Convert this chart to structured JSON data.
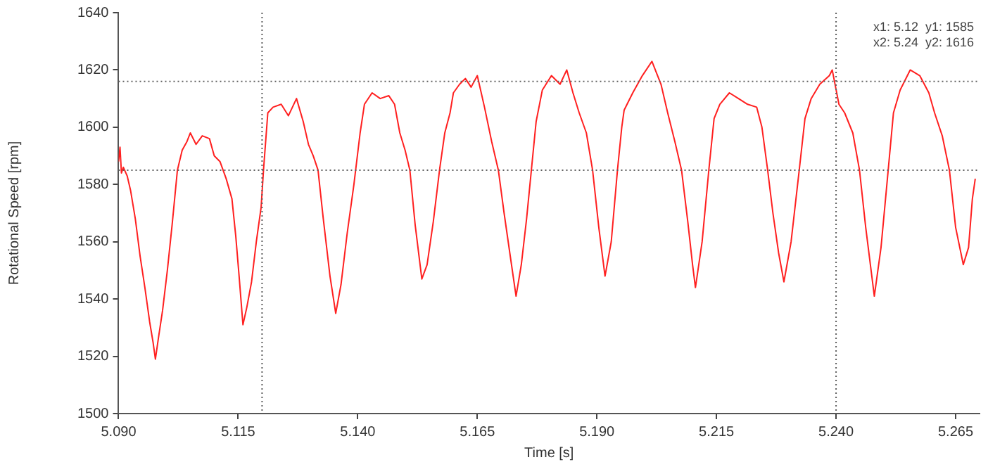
{
  "chart_data": {
    "type": "line",
    "xlabel": "Time [s]",
    "ylabel": "Rotational Speed [rpm]",
    "xlim": [
      5.09,
      5.27
    ],
    "xticks": [
      {
        "value": 5.09,
        "label": "5.090"
      },
      5.115,
      {
        "value": 5.14,
        "label": "5.140"
      },
      5.165,
      {
        "value": 5.19,
        "label": "5.190"
      },
      5.215,
      {
        "value": 5.24,
        "label": "5.240"
      },
      5.265
    ],
    "ylim": [
      1500,
      1640
    ],
    "yticks": [
      1500,
      1520,
      1540,
      1560,
      1580,
      1600,
      1620,
      1640
    ],
    "grid": false,
    "legend": false,
    "marker": "none",
    "line_style": "solid",
    "ref_lines": [
      {
        "axis": "x",
        "value": 5.12,
        "color": "#606060",
        "line_style": "dotted"
      },
      {
        "axis": "x",
        "value": 5.24,
        "color": "#606060",
        "line_style": "dotted"
      },
      {
        "axis": "y",
        "value": 1585,
        "color": "#606060",
        "line_style": "dotted"
      },
      {
        "axis": "y",
        "value": 1616,
        "color": "#606060",
        "line_style": "dotted"
      }
    ],
    "annotations": [
      "x1: 5.12  y1: 1585",
      "x2: 5.24  y2: 1616"
    ],
    "series": [
      {
        "color": "#ff2020",
        "x": [
          5.09,
          5.0903,
          5.0906,
          5.091,
          5.0918,
          5.0925,
          5.0935,
          5.0945,
          5.0955,
          5.0965,
          5.0972,
          5.0977,
          5.0983,
          5.0992,
          5.1002,
          5.1012,
          5.1023,
          5.1033,
          5.1043,
          5.105,
          5.1062,
          5.1075,
          5.109,
          5.11,
          5.1112,
          5.1125,
          5.1137,
          5.1145,
          5.1152,
          5.116,
          5.1168,
          5.1178,
          5.1188,
          5.1198,
          5.1203,
          5.1212,
          5.1223,
          5.124,
          5.1255,
          5.1272,
          5.1286,
          5.1297,
          5.1307,
          5.1317,
          5.1328,
          5.1342,
          5.1354,
          5.1365,
          5.1378,
          5.1392,
          5.1405,
          5.1414,
          5.143,
          5.1447,
          5.1465,
          5.1477,
          5.1488,
          5.1499,
          5.1509,
          5.152,
          5.1534,
          5.1545,
          5.1558,
          5.1571,
          5.1582,
          5.1593,
          5.16,
          5.1613,
          5.1625,
          5.1637,
          5.165,
          5.1665,
          5.168,
          5.1694,
          5.1706,
          5.1718,
          5.1731,
          5.1742,
          5.1753,
          5.1763,
          5.1773,
          5.1786,
          5.1805,
          5.1823,
          5.1837,
          5.185,
          5.1863,
          5.1878,
          5.1891,
          5.1904,
          5.1917,
          5.193,
          5.1943,
          5.1952,
          5.1957,
          5.1975,
          5.1995,
          5.2015,
          5.2034,
          5.2048,
          5.2063,
          5.2077,
          5.209,
          5.21,
          5.2106,
          5.212,
          5.2134,
          5.2145,
          5.2157,
          5.2177,
          5.2196,
          5.2215,
          5.2234,
          5.2245,
          5.2257,
          5.2268,
          5.228,
          5.2291,
          5.2306,
          5.2323,
          5.2335,
          5.2348,
          5.2366,
          5.2386,
          5.2392,
          5.2406,
          5.2418,
          5.2435,
          5.2449,
          5.2462,
          5.248,
          5.2494,
          5.2509,
          5.252,
          5.2534,
          5.2555,
          5.2575,
          5.2594,
          5.2606,
          5.2622,
          5.2637,
          5.265,
          5.2666,
          5.2677,
          5.2685,
          5.2691
        ],
        "values": [
          1588,
          1593,
          1584,
          1586,
          1583,
          1578,
          1568,
          1555,
          1544,
          1532,
          1525,
          1519,
          1526,
          1536,
          1550,
          1566,
          1585,
          1592,
          1595,
          1598,
          1594,
          1597,
          1596,
          1590,
          1588,
          1582,
          1575,
          1562,
          1548,
          1531,
          1537,
          1546,
          1560,
          1572,
          1585,
          1605,
          1607,
          1608,
          1604,
          1610,
          1602,
          1594,
          1590,
          1585,
          1568,
          1548,
          1535,
          1545,
          1563,
          1580,
          1598,
          1608,
          1612,
          1610,
          1611,
          1608,
          1598,
          1592,
          1585,
          1566,
          1547,
          1552,
          1567,
          1585,
          1598,
          1605,
          1612,
          1615,
          1617,
          1614,
          1618,
          1607,
          1595,
          1585,
          1570,
          1556,
          1541,
          1552,
          1568,
          1585,
          1602,
          1613,
          1618,
          1615,
          1620,
          1612,
          1605,
          1598,
          1585,
          1565,
          1548,
          1560,
          1585,
          1600,
          1606,
          1612,
          1618,
          1623,
          1615,
          1605,
          1595,
          1585,
          1567,
          1552,
          1544,
          1560,
          1585,
          1603,
          1608,
          1612,
          1610,
          1608,
          1607,
          1600,
          1585,
          1570,
          1556,
          1546,
          1560,
          1585,
          1603,
          1610,
          1615,
          1618,
          1620,
          1608,
          1605,
          1598,
          1585,
          1565,
          1541,
          1558,
          1585,
          1605,
          1613,
          1620,
          1618,
          1612,
          1605,
          1597,
          1585,
          1565,
          1552,
          1558,
          1575,
          1582
        ]
      }
    ]
  }
}
